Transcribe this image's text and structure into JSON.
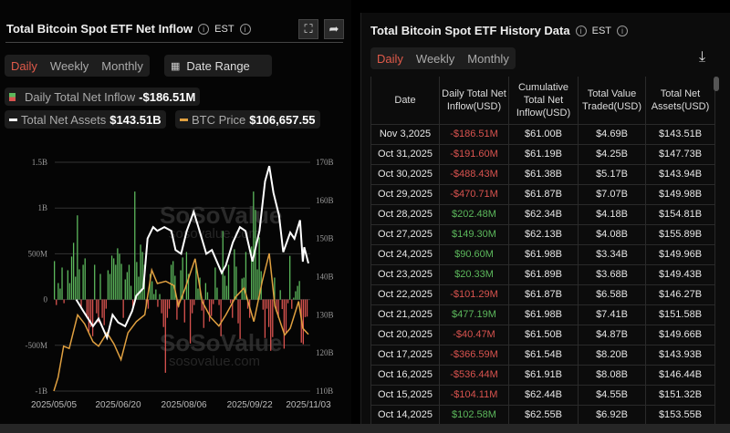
{
  "left": {
    "title": "Total Bitcoin Spot ETF Net Inflow",
    "timezone": "EST",
    "tabs": [
      "Daily",
      "Weekly",
      "Monthly"
    ],
    "active_tab": "Daily",
    "date_range_label": "Date Range",
    "legend": {
      "inflow_label": "Daily Total Net Inflow",
      "inflow_value": "-$186.51M",
      "assets_label": "Total Net Assets",
      "assets_value": "$143.51B",
      "price_label": "BTC Price",
      "price_value": "$106,657.55"
    }
  },
  "right": {
    "title": "Total Bitcoin Spot ETF History Data",
    "timezone": "EST",
    "tabs": [
      "Daily",
      "Weekly",
      "Monthly"
    ],
    "active_tab": "Daily",
    "columns": [
      "Date",
      "Daily Total Net Inflow(USD)",
      "Cumulative Total Net Inflow(USD)",
      "Total Value Traded(USD)",
      "Total Net Assets(USD)"
    ],
    "rows": [
      [
        "Nov 3,2025",
        "-$186.51M",
        "$61.00B",
        "$4.69B",
        "$143.51B"
      ],
      [
        "Oct 31,2025",
        "-$191.60M",
        "$61.19B",
        "$4.25B",
        "$147.73B"
      ],
      [
        "Oct 30,2025",
        "-$488.43M",
        "$61.38B",
        "$5.17B",
        "$143.94B"
      ],
      [
        "Oct 29,2025",
        "-$470.71M",
        "$61.87B",
        "$7.07B",
        "$149.98B"
      ],
      [
        "Oct 28,2025",
        "$202.48M",
        "$62.34B",
        "$4.18B",
        "$154.81B"
      ],
      [
        "Oct 27,2025",
        "$149.30M",
        "$62.13B",
        "$4.08B",
        "$155.89B"
      ],
      [
        "Oct 24,2025",
        "$90.60M",
        "$61.98B",
        "$3.34B",
        "$149.96B"
      ],
      [
        "Oct 23,2025",
        "$20.33M",
        "$61.89B",
        "$3.68B",
        "$149.43B"
      ],
      [
        "Oct 22,2025",
        "-$101.29M",
        "$61.87B",
        "$6.58B",
        "$146.27B"
      ],
      [
        "Oct 21,2025",
        "$477.19M",
        "$61.98B",
        "$7.41B",
        "$151.58B"
      ],
      [
        "Oct 20,2025",
        "-$40.47M",
        "$61.50B",
        "$4.87B",
        "$149.66B"
      ],
      [
        "Oct 17,2025",
        "-$366.59M",
        "$61.54B",
        "$8.20B",
        "$143.93B"
      ],
      [
        "Oct 16,2025",
        "-$536.44M",
        "$61.91B",
        "$8.08B",
        "$146.44B"
      ],
      [
        "Oct 15,2025",
        "-$104.11M",
        "$62.44B",
        "$4.55B",
        "$151.32B"
      ],
      [
        "Oct 14,2025",
        "$102.58M",
        "$62.55B",
        "$6.92B",
        "$153.55B"
      ]
    ]
  },
  "colors": {
    "positive": "#5cb85c",
    "negative": "#d9534f",
    "active_tab": "#e05a4a",
    "assets_line": "#ffffff",
    "price_line": "#e0a040"
  },
  "chart_data": {
    "type": "bar+line",
    "x_ticks": [
      "2025/05/05",
      "2025/06/20",
      "2025/08/06",
      "2025/09/22",
      "2025/11/03"
    ],
    "x_range": [
      "2025/05/05",
      "2025/11/03"
    ],
    "y_left_ticks": [
      "1.5B",
      "1B",
      "500M",
      "0",
      "-500M",
      "-1B"
    ],
    "y_left_range_musd": [
      -1000,
      1500
    ],
    "y_right_ticks": [
      "170B",
      "160B",
      "150B",
      "140B",
      "130B",
      "120B",
      "110B"
    ],
    "y_right_range_busd": [
      110,
      170
    ],
    "grid": true,
    "watermark": "SoSoValue sosovalue.com",
    "series": [
      {
        "name": "Daily Total Net Inflow",
        "unit": "M USD",
        "type": "bar",
        "values": [
          420,
          -60,
          180,
          120,
          350,
          -40,
          0,
          320,
          180,
          470,
          620,
          250,
          920,
          330,
          -100,
          380,
          450,
          -200,
          -350,
          -300,
          -400,
          380,
          -150,
          -250,
          280,
          -200,
          -280,
          -100,
          320,
          280,
          480,
          450,
          380,
          560,
          500,
          390,
          -200,
          220,
          300,
          380,
          150,
          -100,
          1180,
          410,
          250,
          600,
          520,
          380,
          -60,
          -100,
          280,
          200,
          60,
          110,
          -80,
          60,
          -150,
          -300,
          -800,
          -200,
          -100,
          380,
          420,
          260,
          -220,
          -80,
          320,
          460,
          -250,
          520,
          280,
          -480,
          -150,
          -60,
          380,
          120,
          240,
          -120,
          -310,
          180,
          80,
          -240,
          -180,
          -50,
          350,
          130,
          -60,
          -400,
          750,
          260,
          150,
          380,
          -40,
          -200,
          550,
          360,
          -260,
          -430,
          230,
          240,
          520,
          -100,
          -200,
          580,
          1180,
          980,
          330,
          680,
          310,
          -110,
          -420,
          -100,
          -300,
          -560,
          -410,
          240,
          -130,
          -200,
          102.58,
          -104.11,
          -536.44,
          -366.59,
          -40.47,
          477.19,
          -101.29,
          20.33,
          90.6,
          149.3,
          202.48,
          -470.71,
          -488.43,
          -191.6,
          -186.51
        ]
      },
      {
        "name": "Total Net Assets",
        "unit": "B USD",
        "type": "line",
        "points": [
          [
            "2025/05/21",
            134
          ],
          [
            "2025/05/26",
            131
          ],
          [
            "2025/06/02",
            127
          ],
          [
            "2025/06/06",
            129
          ],
          [
            "2025/06/12",
            124
          ],
          [
            "2025/06/16",
            130
          ],
          [
            "2025/06/20",
            128
          ],
          [
            "2025/06/25",
            127
          ],
          [
            "2025/06/30",
            131
          ],
          [
            "2025/07/03",
            135
          ],
          [
            "2025/07/08",
            137
          ],
          [
            "2025/07/11",
            150
          ],
          [
            "2025/07/15",
            153
          ],
          [
            "2025/07/18",
            152
          ],
          [
            "2025/07/23",
            153
          ],
          [
            "2025/07/28",
            152
          ],
          [
            "2025/07/31",
            147
          ],
          [
            "2025/08/04",
            146
          ],
          [
            "2025/08/08",
            152
          ],
          [
            "2025/08/13",
            157
          ],
          [
            "2025/08/18",
            151
          ],
          [
            "2025/08/22",
            146
          ],
          [
            "2025/08/26",
            147
          ],
          [
            "2025/09/02",
            141
          ],
          [
            "2025/09/05",
            143
          ],
          [
            "2025/09/10",
            149
          ],
          [
            "2025/09/15",
            153
          ],
          [
            "2025/09/19",
            152
          ],
          [
            "2025/09/24",
            144
          ],
          [
            "2025/09/29",
            152
          ],
          [
            "2025/10/03",
            165
          ],
          [
            "2025/10/06",
            169
          ],
          [
            "2025/10/09",
            162
          ],
          [
            "2025/10/13",
            156
          ],
          [
            "2025/10/16",
            146.44
          ],
          [
            "2025/10/21",
            151.58
          ],
          [
            "2025/10/24",
            149.96
          ],
          [
            "2025/10/28",
            154.81
          ],
          [
            "2025/10/30",
            143.94
          ],
          [
            "2025/10/31",
            147.73
          ],
          [
            "2025/11/03",
            143.51
          ]
        ]
      },
      {
        "name": "BTC Price",
        "unit": "USD",
        "type": "line",
        "points": [
          [
            "2025/05/05",
            94000
          ],
          [
            "2025/05/08",
            97000
          ],
          [
            "2025/05/12",
            104000
          ],
          [
            "2025/05/16",
            103500
          ],
          [
            "2025/05/22",
            111000
          ],
          [
            "2025/05/27",
            109000
          ],
          [
            "2025/06/02",
            105000
          ],
          [
            "2025/06/06",
            104000
          ],
          [
            "2025/06/12",
            107000
          ],
          [
            "2025/06/17",
            104500
          ],
          [
            "2025/06/22",
            101000
          ],
          [
            "2025/06/27",
            107000
          ],
          [
            "2025/07/03",
            109500
          ],
          [
            "2025/07/09",
            111000
          ],
          [
            "2025/07/14",
            121000
          ],
          [
            "2025/07/18",
            118000
          ],
          [
            "2025/07/24",
            118500
          ],
          [
            "2025/07/30",
            117500
          ],
          [
            "2025/08/02",
            113000
          ],
          [
            "2025/08/07",
            117000
          ],
          [
            "2025/08/14",
            123500
          ],
          [
            "2025/08/19",
            114000
          ],
          [
            "2025/08/25",
            110500
          ],
          [
            "2025/08/31",
            108500
          ],
          [
            "2025/09/05",
            111000
          ],
          [
            "2025/09/12",
            115000
          ],
          [
            "2025/09/18",
            117000
          ],
          [
            "2025/09/25",
            109500
          ],
          [
            "2025/10/01",
            118500
          ],
          [
            "2025/10/06",
            124700
          ],
          [
            "2025/10/10",
            113000
          ],
          [
            "2025/10/17",
            106500
          ],
          [
            "2025/10/21",
            108000
          ],
          [
            "2025/10/24",
            111000
          ],
          [
            "2025/10/27",
            114000
          ],
          [
            "2025/10/30",
            108000
          ],
          [
            "2025/11/03",
            106657.55
          ]
        ]
      }
    ]
  }
}
